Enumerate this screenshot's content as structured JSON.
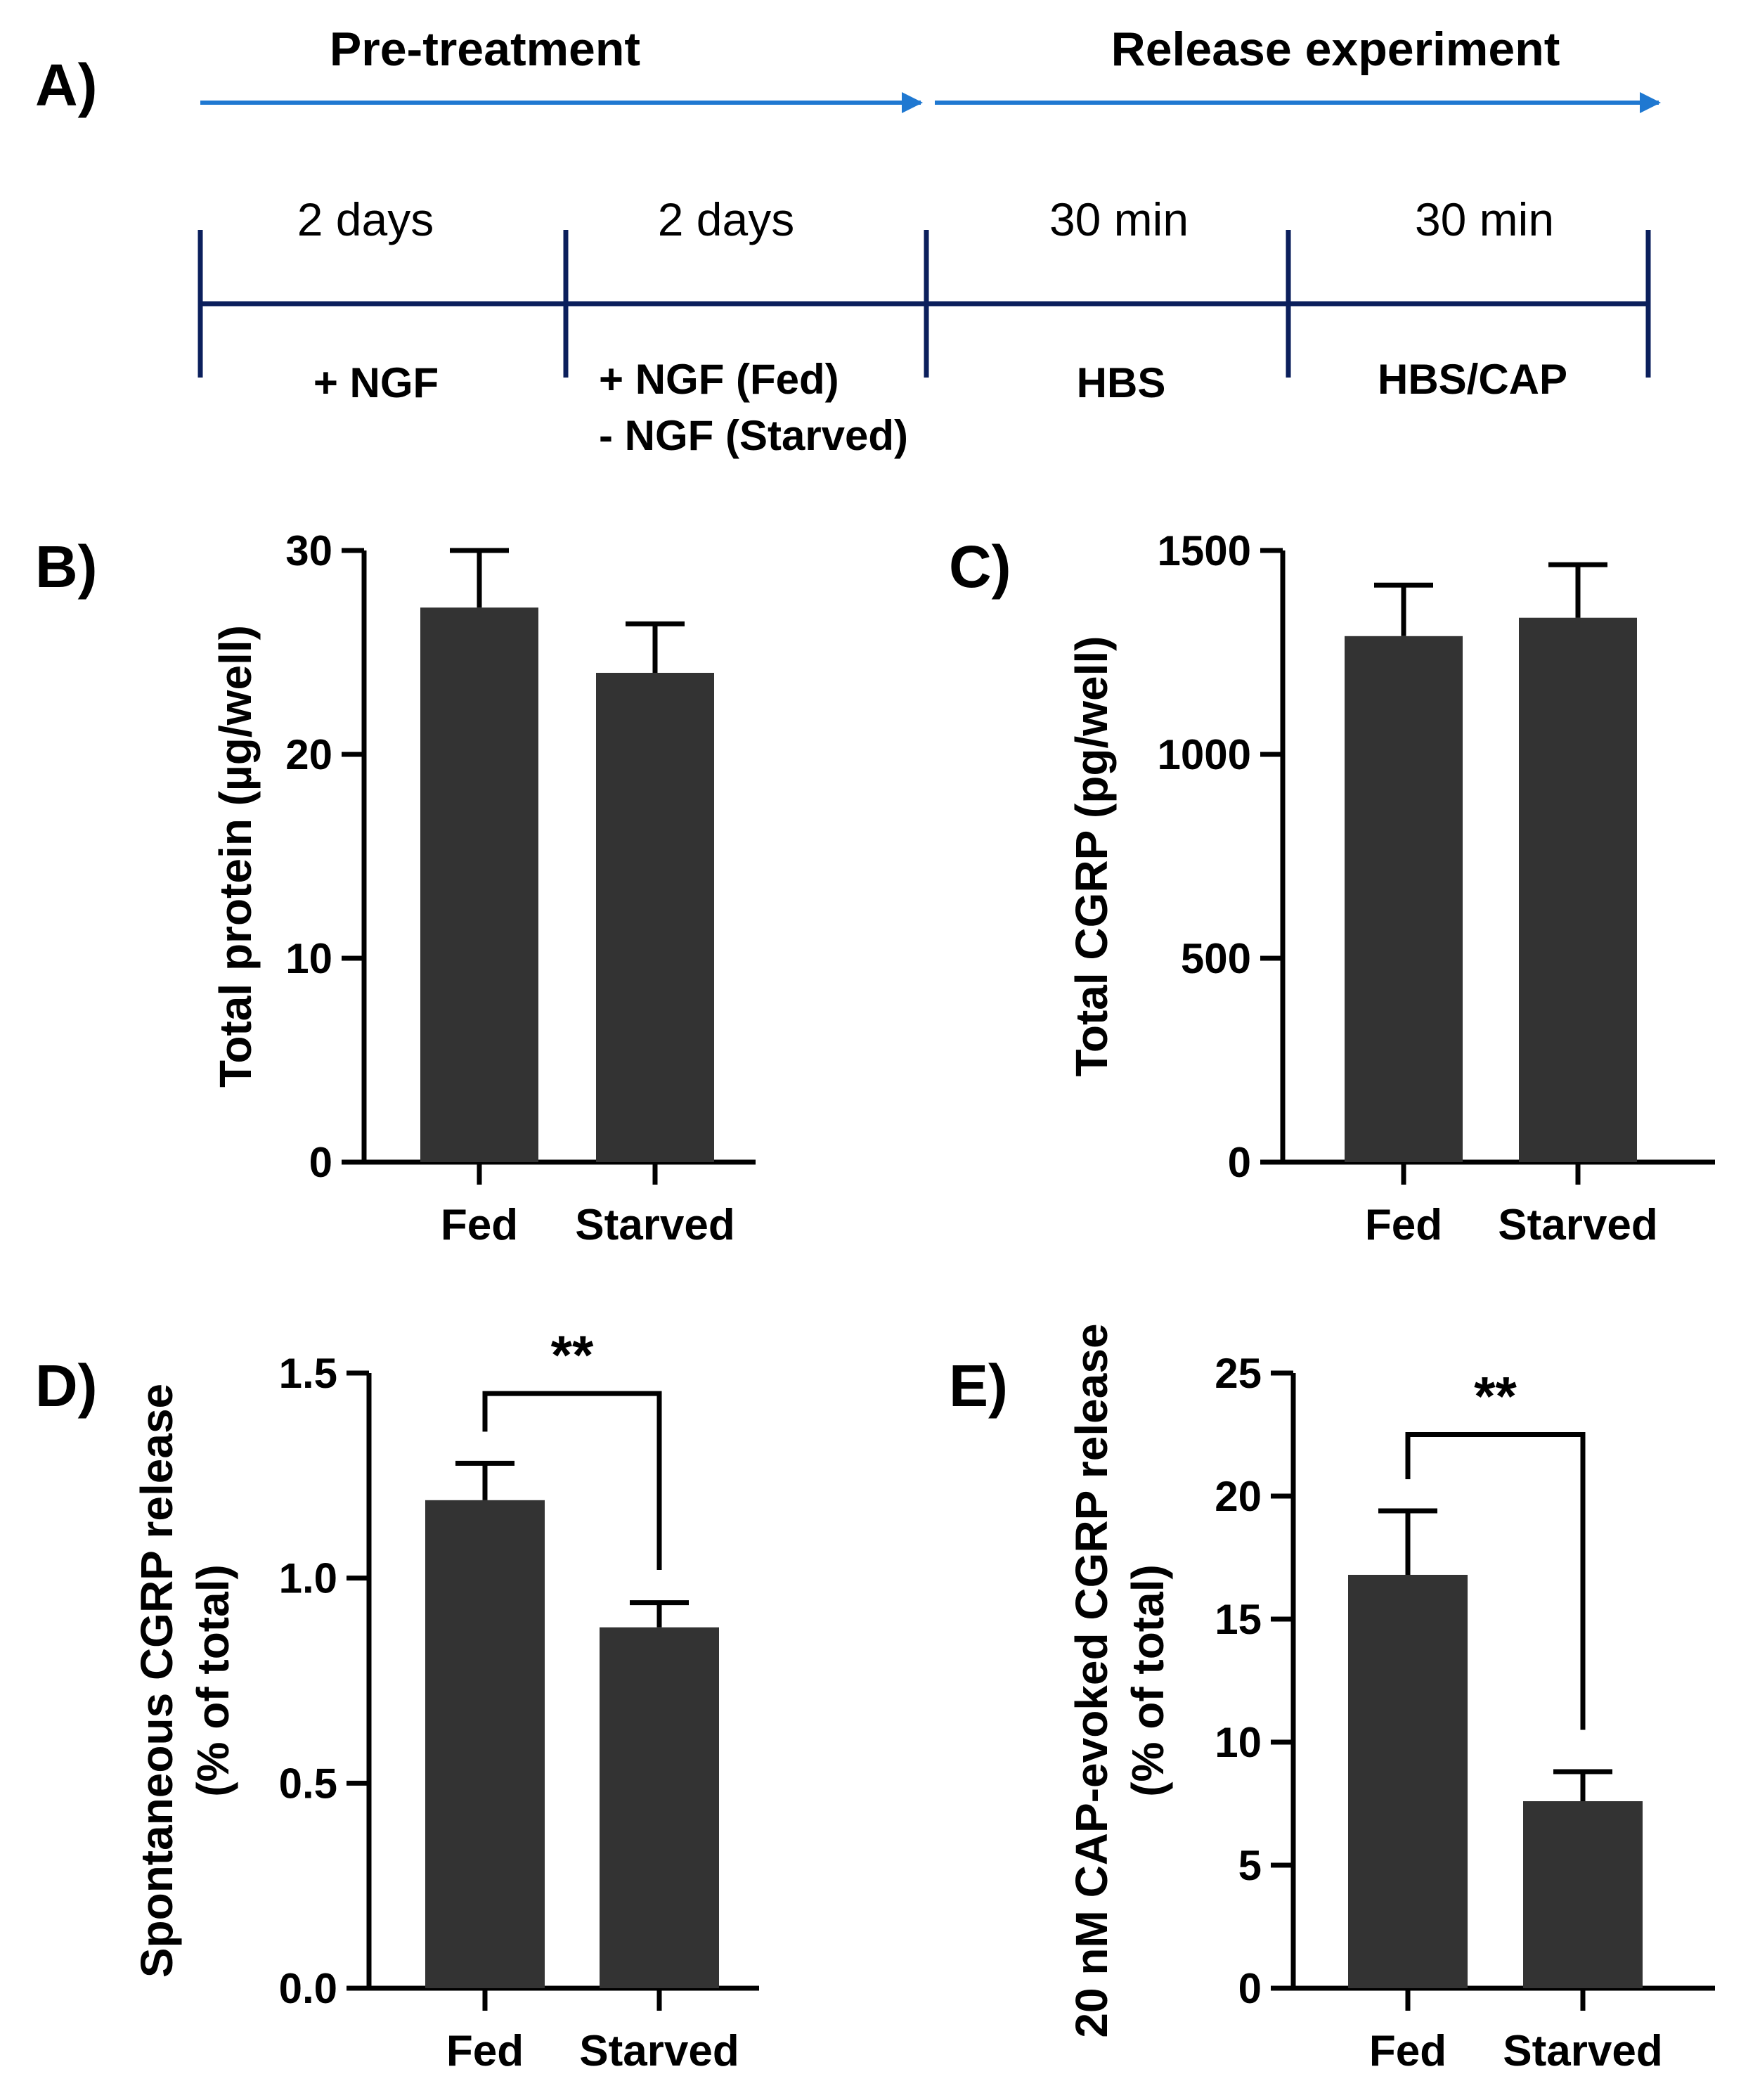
{
  "panel_labels": {
    "a": "A)",
    "b": "B)",
    "c": "C)",
    "d": "D)",
    "e": "E)"
  },
  "timeline": {
    "phase1": "Pre-treatment",
    "phase2": "Release experiment",
    "arrow_color": "#1f78d1",
    "line_color": "#0b1f5c",
    "durations": [
      "2 days",
      "2 days",
      "30 min",
      "30 min"
    ],
    "treatments": [
      "+ NGF",
      "+ NGF (Fed)",
      "- NGF (Starved)",
      "HBS",
      "HBS/CAP"
    ]
  },
  "bar_color": "#333333",
  "chart_data": [
    {
      "id": "B",
      "type": "bar",
      "categories": [
        "Fed",
        "Starved"
      ],
      "values": [
        27.2,
        24.0
      ],
      "errors": [
        2.8,
        2.4
      ],
      "ylabel": "Total protein (µg/well)",
      "ylim": [
        0,
        30
      ],
      "yticks": [
        0,
        10,
        20,
        30
      ],
      "ytick_labels": [
        "0",
        "10",
        "20",
        "30"
      ]
    },
    {
      "id": "C",
      "type": "bar",
      "categories": [
        "Fed",
        "Starved"
      ],
      "values": [
        1290,
        1335
      ],
      "errors": [
        125,
        130
      ],
      "ylabel": "Total CGRP (pg/well)",
      "ylim": [
        0,
        1500
      ],
      "yticks": [
        0,
        500,
        1000,
        1500
      ],
      "ytick_labels": [
        "0",
        "500",
        "1000",
        "1500"
      ]
    },
    {
      "id": "D",
      "type": "bar",
      "categories": [
        "Fed",
        "Starved"
      ],
      "values": [
        1.19,
        0.88
      ],
      "errors": [
        0.09,
        0.06
      ],
      "ylabel": [
        "Spontaneous CGRP release",
        "(% of total)"
      ],
      "ylim": [
        0,
        1.5
      ],
      "yticks": [
        0,
        0.5,
        1.0,
        1.5
      ],
      "ytick_labels": [
        "0.0",
        "0.5",
        "1.0",
        "1.5"
      ],
      "significance": "**",
      "bracket_levels": [
        1.45,
        1.02
      ]
    },
    {
      "id": "E",
      "type": "bar",
      "categories": [
        "Fed",
        "Starved"
      ],
      "values": [
        16.8,
        7.6
      ],
      "errors": [
        2.6,
        1.2
      ],
      "ylabel": [
        "20 nM CAP-evoked CGRP release",
        "(% of total)"
      ],
      "ylim": [
        0,
        25
      ],
      "yticks": [
        0,
        5,
        10,
        15,
        20,
        25
      ],
      "ytick_labels": [
        "0",
        "5",
        "10",
        "15",
        "20",
        "25"
      ],
      "significance": "**",
      "bracket_levels": [
        22.5,
        10.5
      ]
    }
  ]
}
